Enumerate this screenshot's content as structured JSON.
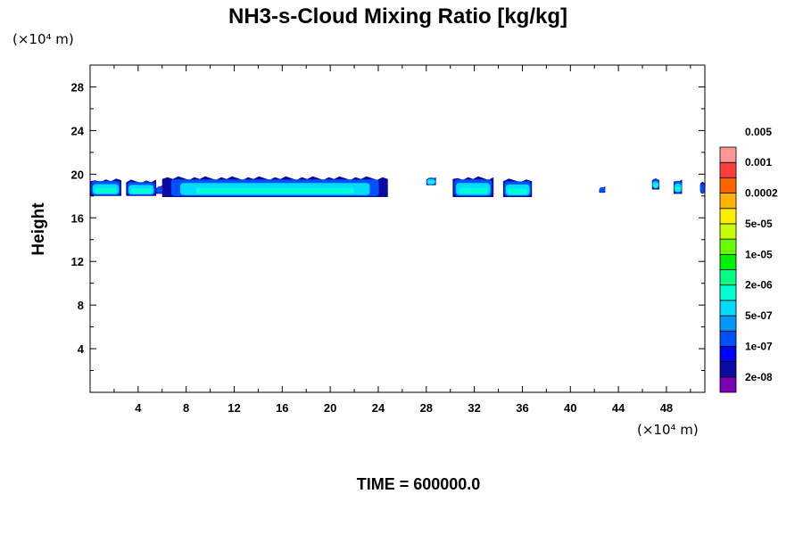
{
  "chart_data": {
    "type": "heatmap",
    "title": "NH3-s-Cloud Mixing Ratio [kg/kg]",
    "xlabel": "",
    "ylabel": "Height",
    "x_unit_label": "(×10⁴ m)",
    "y_unit_label": "(×10⁴ m)",
    "footer": "TIME = 600000.0",
    "xlim": [
      0,
      51.2
    ],
    "ylim": [
      0,
      30
    ],
    "x_ticks": [
      4,
      8,
      12,
      16,
      20,
      24,
      28,
      32,
      36,
      40,
      44,
      48
    ],
    "y_ticks": [
      4,
      8,
      12,
      16,
      20,
      24,
      28
    ],
    "grid": false,
    "legend": "colorbar-right",
    "colorbar": {
      "colors": [
        "#7a00b4",
        "#0a0aa0",
        "#0000ff",
        "#0050ff",
        "#0096ff",
        "#00dcff",
        "#00ffd2",
        "#00ff82",
        "#00ee00",
        "#66ff00",
        "#c8ff00",
        "#ffee00",
        "#ffb400",
        "#ff6400",
        "#ff3c3c",
        "#ff9696"
      ],
      "labels": [
        "2e-08",
        "1e-07",
        "5e-07",
        "2e-06",
        "1e-05",
        "5e-05",
        "0.0002",
        "0.001",
        "0.005"
      ]
    },
    "cloud_regions": [
      {
        "x_start": 0.0,
        "x_end": 2.6,
        "y_bottom": 18.0,
        "y_top": 19.6
      },
      {
        "x_start": 3.0,
        "x_end": 5.5,
        "y_bottom": 18.0,
        "y_top": 19.5
      },
      {
        "x_start": 5.5,
        "x_end": 6.0,
        "y_bottom": 18.2,
        "y_top": 19.0
      },
      {
        "x_start": 6.0,
        "x_end": 24.8,
        "y_bottom": 17.9,
        "y_top": 19.8
      },
      {
        "x_start": 28.0,
        "x_end": 28.8,
        "y_bottom": 19.0,
        "y_top": 19.8
      },
      {
        "x_start": 30.2,
        "x_end": 33.6,
        "y_bottom": 17.9,
        "y_top": 19.8
      },
      {
        "x_start": 34.4,
        "x_end": 36.8,
        "y_bottom": 17.9,
        "y_top": 19.6
      },
      {
        "x_start": 42.4,
        "x_end": 42.9,
        "y_bottom": 18.3,
        "y_top": 18.9
      },
      {
        "x_start": 46.8,
        "x_end": 47.4,
        "y_bottom": 18.6,
        "y_top": 19.7
      },
      {
        "x_start": 48.6,
        "x_end": 49.3,
        "y_bottom": 18.2,
        "y_top": 19.6
      },
      {
        "x_start": 50.8,
        "x_end": 51.2,
        "y_bottom": 18.2,
        "y_top": 19.3
      }
    ]
  }
}
